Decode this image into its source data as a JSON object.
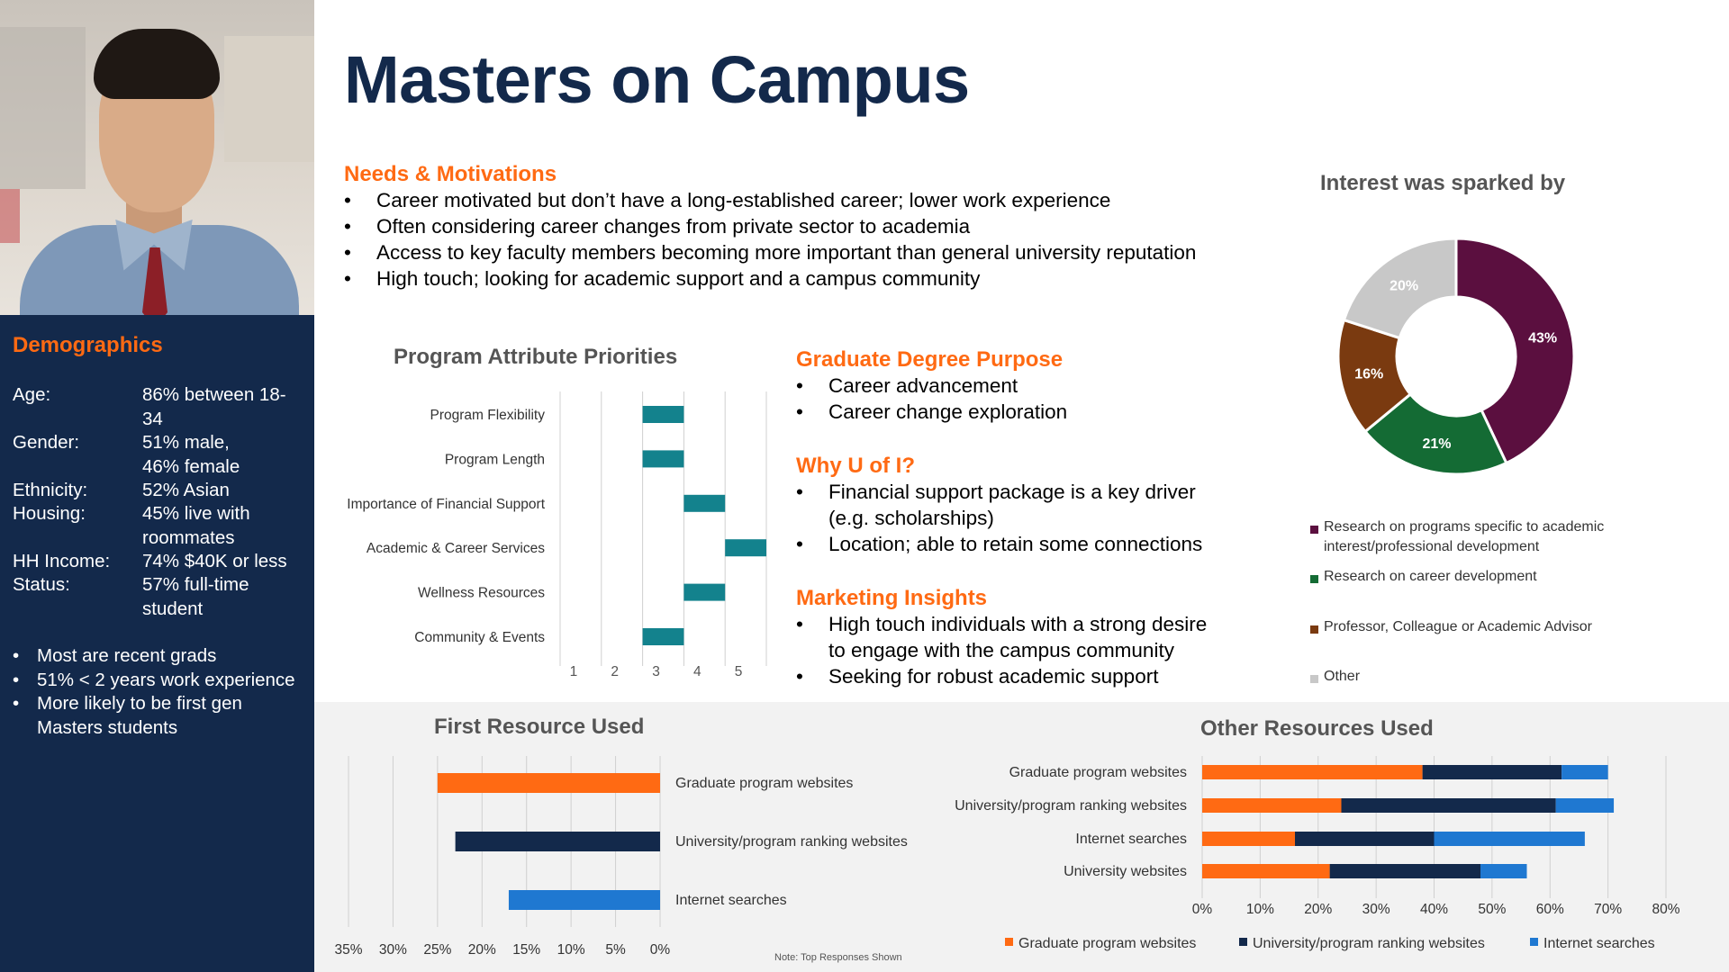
{
  "title": "Masters on Campus",
  "colors": {
    "navy": "#13294b",
    "orange": "#ff6a13",
    "teal": "#13828d",
    "blue": "#1f78d1",
    "maroon": "#5b0f3f",
    "green": "#146b34",
    "brown": "#7a3a10",
    "gray": "#c8c8c8"
  },
  "photo": {
    "icon": "person-portrait-photo"
  },
  "demographics": {
    "heading": "Demographics",
    "rows": [
      {
        "label": "Age:",
        "value": "86% between 18-34"
      },
      {
        "label": "Gender:",
        "value": "51% male, 46% female"
      },
      {
        "label": "Ethnicity:",
        "value": "52% Asian"
      },
      {
        "label": "Housing:",
        "value": "45% live with roommates"
      },
      {
        "label": "HH Income:",
        "value": "74% $40K or less"
      },
      {
        "label": "Status:",
        "value": "57% full-time student"
      }
    ],
    "bullets": [
      "Most are recent grads",
      "51% < 2 years work experience",
      "More likely to be first gen Masters students"
    ]
  },
  "needs": {
    "heading": "Needs & Motivations",
    "bullets": [
      "Career motivated but don’t have a long-established career; lower work experience",
      "Often considering career changes from private sector to academia",
      "Access to key faculty members becoming more important than general university reputation",
      "High touch; looking for academic support and a campus community"
    ]
  },
  "purpose": {
    "heading": "Graduate Degree Purpose",
    "bullets": [
      "Career advancement",
      "Career change exploration"
    ]
  },
  "why": {
    "heading": "Why U of I?",
    "bullets": [
      "Financial support package is a key driver (e.g. scholarships)",
      "Location; able to retain some connections"
    ]
  },
  "marketing": {
    "heading": "Marketing Insights",
    "bullets": [
      "High touch individuals with a strong desire to engage with the campus community",
      "Seeking for robust academic support"
    ]
  },
  "note": "Note: Top Responses Shown",
  "chart_data": [
    {
      "id": "priorities",
      "type": "bar",
      "title": "Program Attribute Priorities",
      "categories": [
        "Program Flexibility",
        "Program Length",
        "Importance of Financial Support",
        "Academic & Career Services",
        "Wellness Resources",
        "Community & Events"
      ],
      "values": [
        3,
        3,
        4,
        5,
        4,
        3
      ],
      "xticks": [
        "1",
        "2",
        "3",
        "4",
        "5"
      ],
      "xlim": [
        0,
        5
      ],
      "color": "#13828d"
    },
    {
      "id": "interest",
      "type": "pie",
      "title": "Interest was sparked by",
      "categories": [
        "Research on programs specific to academic interest/professional development",
        "Research on career development",
        "Professor, Colleague or Academic Advisor",
        "Other"
      ],
      "values": [
        43,
        21,
        16,
        20
      ],
      "labels": [
        "43%",
        "21%",
        "16%",
        "20%"
      ],
      "colors": [
        "#5b0f3f",
        "#146b34",
        "#7a3a10",
        "#c8c8c8"
      ]
    },
    {
      "id": "first-resource",
      "type": "bar",
      "title": "First Resource Used",
      "categories": [
        "Graduate program websites",
        "University/program ranking websites",
        "Internet searches"
      ],
      "values": [
        25,
        23,
        17
      ],
      "colors": [
        "#ff6a13",
        "#13294b",
        "#1f78d1"
      ],
      "xticks": [
        "35%",
        "30%",
        "25%",
        "20%",
        "15%",
        "10%",
        "5%",
        "0%"
      ],
      "xlim": [
        35,
        0
      ]
    },
    {
      "id": "other-resources",
      "type": "bar",
      "title": "Other Resources Used",
      "categories": [
        "Graduate program websites",
        "University/program ranking websites",
        "Internet searches",
        "University websites"
      ],
      "series": [
        {
          "name": "Graduate program websites",
          "values": [
            38,
            24,
            16,
            22
          ],
          "color": "#ff6a13"
        },
        {
          "name": "University/program ranking websites",
          "values": [
            24,
            37,
            24,
            26
          ],
          "color": "#13294b"
        },
        {
          "name": "Internet searches",
          "values": [
            8,
            10,
            26,
            8
          ],
          "color": "#1f78d1"
        }
      ],
      "xticks": [
        "0%",
        "10%",
        "20%",
        "30%",
        "40%",
        "50%",
        "60%",
        "70%",
        "80%"
      ],
      "xlim": [
        0,
        80
      ]
    }
  ]
}
